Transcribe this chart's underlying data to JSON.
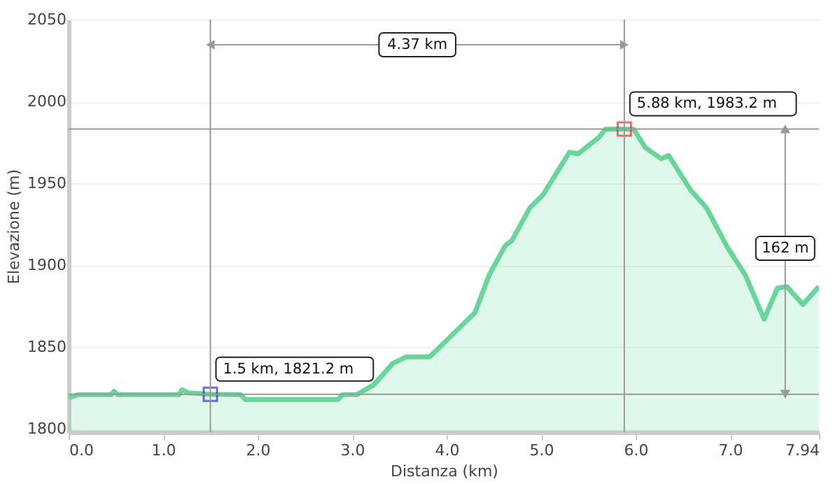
{
  "chart_data": {
    "type": "area",
    "xlabel": "Distanza   (km)",
    "ylabel": "Elevazione (m)",
    "xlim": [
      0,
      7.94
    ],
    "ylim": [
      1798,
      2050
    ],
    "xticks": [
      {
        "value": 0,
        "label": "0.0"
      },
      {
        "value": 1,
        "label": "1.0"
      },
      {
        "value": 2,
        "label": "2.0"
      },
      {
        "value": 3,
        "label": "3.0"
      },
      {
        "value": 4,
        "label": "4.0"
      },
      {
        "value": 5,
        "label": "5.0"
      },
      {
        "value": 6,
        "label": "6.0"
      },
      {
        "value": 7,
        "label": "7.0"
      },
      7.94
    ],
    "yticks": [
      1800,
      1850,
      1900,
      1950,
      2000,
      2050
    ],
    "grid": "y",
    "series": [
      {
        "color": "#66d699",
        "x": [
          0,
          0.1,
          0.45,
          0.48,
          0.52,
          1.17,
          1.2,
          1.27,
          1.5,
          1.82,
          1.87,
          2.85,
          2.9,
          3.05,
          3.23,
          3.43,
          3.57,
          3.82,
          3.91,
          4.3,
          4.45,
          4.62,
          4.69,
          4.88,
          5.02,
          5.3,
          5.39,
          5.61,
          5.68,
          5.88,
          5.98,
          6.1,
          6.27,
          6.35,
          6.58,
          6.75,
          6.97,
          7.16,
          7.36,
          7.5,
          7.6,
          7.77,
          7.94
        ],
        "values": [
          1819,
          1821,
          1821,
          1823,
          1821,
          1821,
          1824,
          1822,
          1821.2,
          1821,
          1818,
          1818,
          1821,
          1821,
          1827,
          1840,
          1844,
          1844,
          1849,
          1871,
          1894,
          1912,
          1915,
          1935,
          1943,
          1969,
          1968,
          1978,
          1983,
          1983.2,
          1983,
          1972,
          1965,
          1967,
          1946,
          1935,
          1911,
          1894,
          1867,
          1886,
          1887,
          1876,
          1887
        ]
      },
      {
        "type": "scatter",
        "marker": "square",
        "x": [
          1.5,
          5.88
        ],
        "values": [
          1821.2,
          1983.2
        ],
        "colors": [
          "#3333cc",
          "#dd3333"
        ]
      }
    ],
    "ref_lines": [
      {
        "axis": "x",
        "value": 1.5,
        "color": "#999999"
      },
      {
        "axis": "x",
        "value": 5.88,
        "color": "#999999"
      },
      {
        "axis": "y",
        "value": 1821.2,
        "color": "#999999"
      },
      {
        "axis": "y",
        "value": 1983.2,
        "color": "#999999"
      }
    ],
    "annotations": [
      {
        "text": "1.5 km, 1821.2 m",
        "x": 1.5,
        "y": 1821.2
      },
      {
        "text": "5.88 km, 1983.2 m",
        "x": 5.88,
        "y": 1983.2
      },
      "4.37 km",
      "162 m"
    ]
  }
}
